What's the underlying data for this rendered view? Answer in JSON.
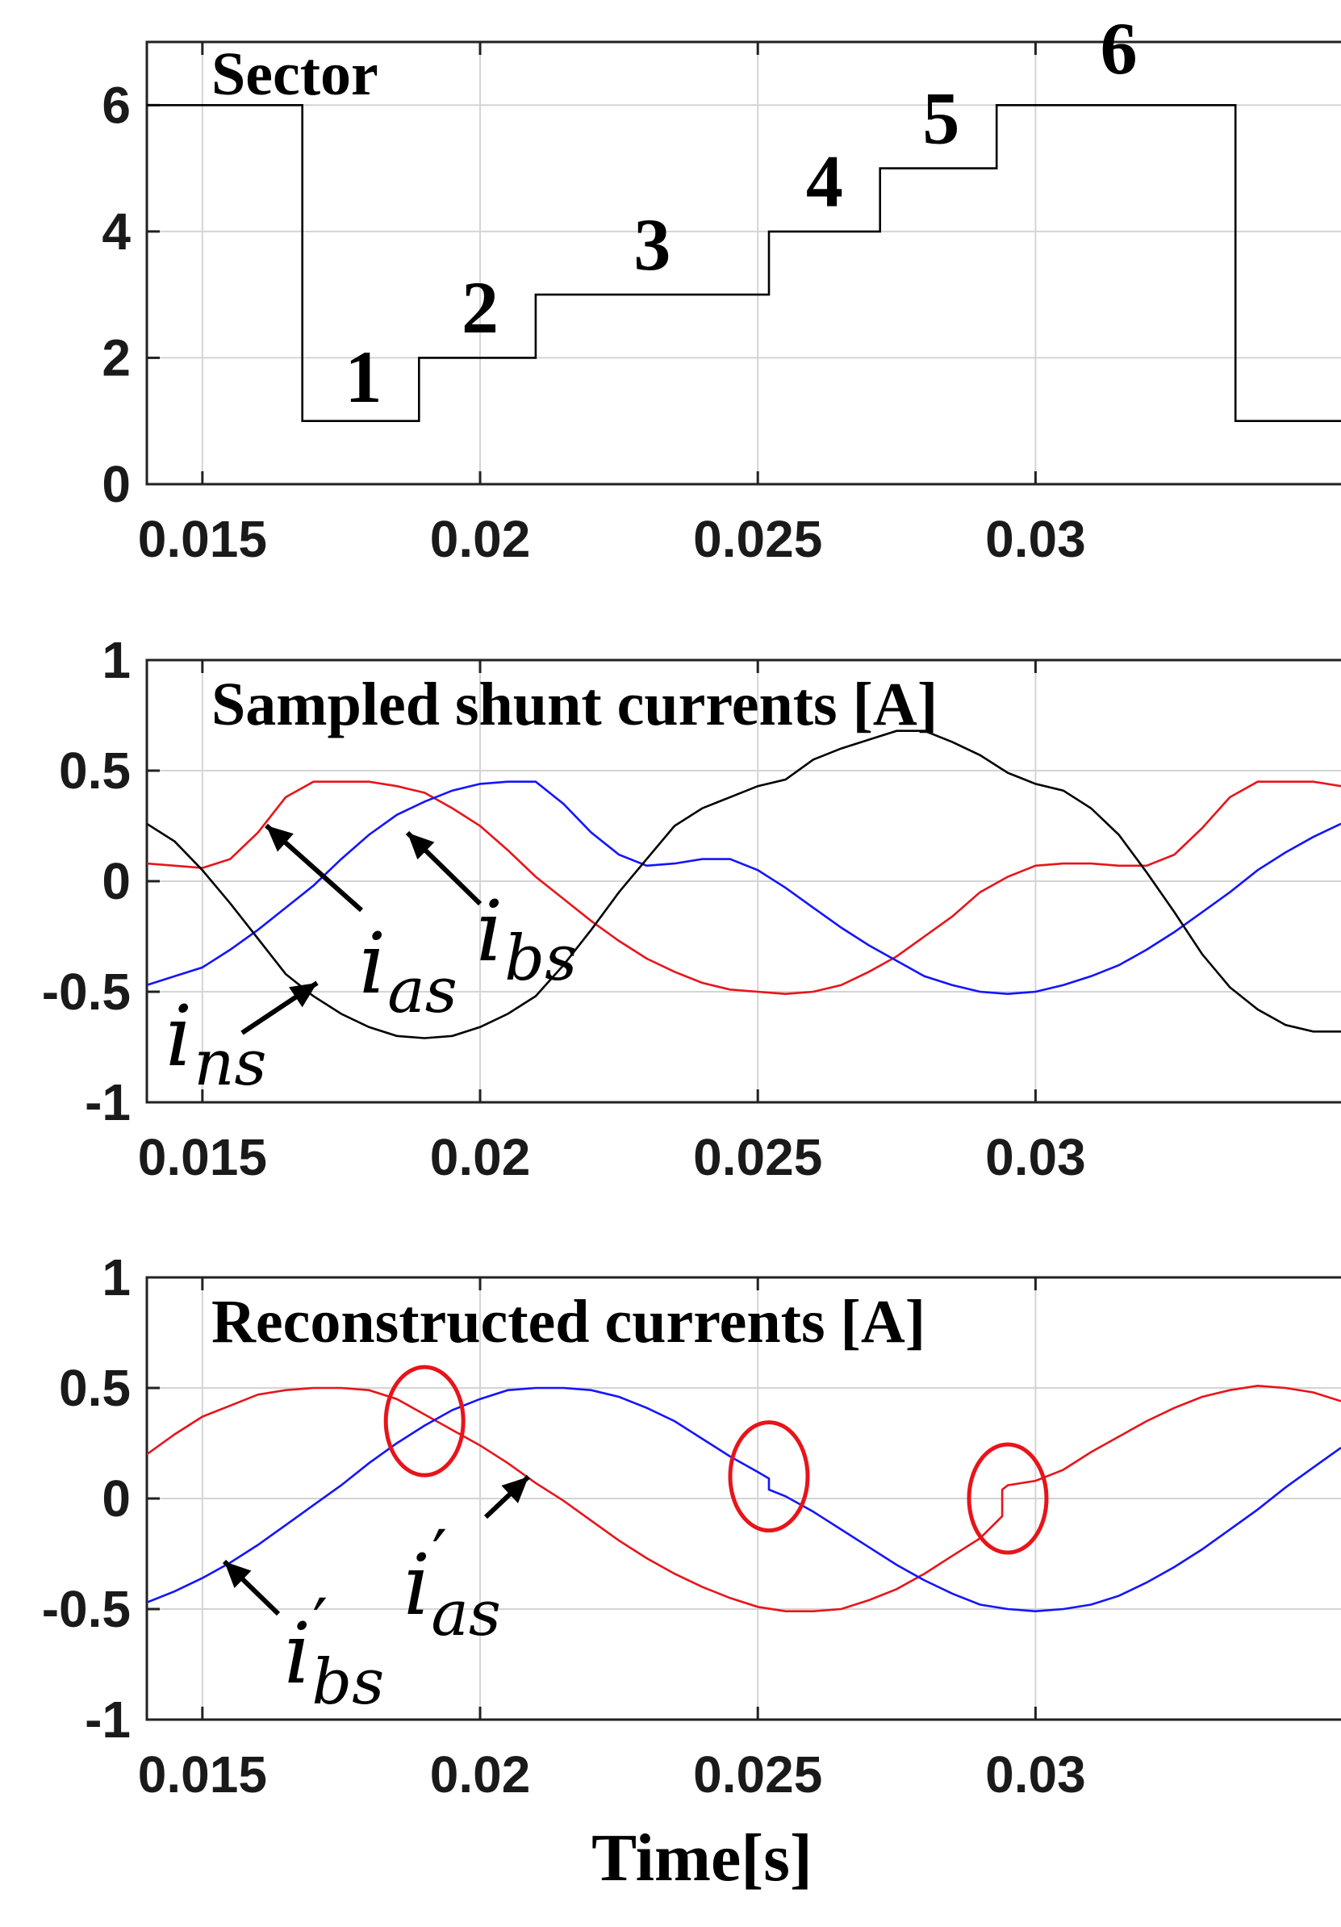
{
  "figure": {
    "xlabel": "Time[s]"
  },
  "chart_data": [
    {
      "type": "line",
      "title": "Sector",
      "xlim": [
        0.014,
        0.0355
      ],
      "ylim": [
        0,
        7
      ],
      "xticks": [
        0.015,
        0.02,
        0.025,
        0.03
      ],
      "xtick_labels": [
        "0.015",
        "0.02",
        "0.025",
        "0.03"
      ],
      "yticks": [
        0,
        2,
        4,
        6
      ],
      "ytick_labels": [
        "0",
        "2",
        "4",
        "6"
      ],
      "grid": true,
      "series": [
        {
          "color": "#000000",
          "step": true,
          "x": [
            0.014,
            0.0168,
            0.0168,
            0.0189,
            0.0189,
            0.021,
            0.021,
            0.0252,
            0.0252,
            0.0272,
            0.0272,
            0.0293,
            0.0293,
            0.0336,
            0.0336,
            0.0355
          ],
          "y": [
            6,
            6,
            1,
            1,
            2,
            2,
            3,
            3,
            4,
            4,
            5,
            5,
            6,
            6,
            1,
            1
          ]
        }
      ],
      "annotations": [
        {
          "text": "1",
          "x": 0.0179,
          "y": 1.3
        },
        {
          "text": "2",
          "x": 0.02,
          "y": 2.4
        },
        {
          "text": "3",
          "x": 0.0231,
          "y": 3.4
        },
        {
          "text": "4",
          "x": 0.0262,
          "y": 4.4
        },
        {
          "text": "5",
          "x": 0.0283,
          "y": 5.4
        },
        {
          "text": "6",
          "x": 0.0315,
          "y": 6.5
        }
      ]
    },
    {
      "type": "line",
      "title": "Sampled shunt currents [A]",
      "xlim": [
        0.014,
        0.0355
      ],
      "ylim": [
        -1,
        1
      ],
      "xticks": [
        0.015,
        0.02,
        0.025,
        0.03
      ],
      "xtick_labels": [
        "0.015",
        "0.02",
        "0.025",
        "0.03"
      ],
      "yticks": [
        -1,
        -0.5,
        0,
        0.5,
        1
      ],
      "ytick_labels": [
        "-1",
        "-0.5",
        "0",
        "0.5",
        "1"
      ],
      "grid": true,
      "series": [
        {
          "name_symbol": "i",
          "name_sub": "as",
          "color": "#e8141a",
          "x": [
            0.014,
            0.0145,
            0.015,
            0.0155,
            0.016,
            0.0165,
            0.017,
            0.0175,
            0.018,
            0.0185,
            0.019,
            0.0195,
            0.02,
            0.0205,
            0.021,
            0.0215,
            0.022,
            0.0225,
            0.023,
            0.0235,
            0.024,
            0.0245,
            0.025,
            0.0255,
            0.026,
            0.0265,
            0.027,
            0.0275,
            0.028,
            0.0285,
            0.029,
            0.0295,
            0.03,
            0.0305,
            0.031,
            0.0315,
            0.032,
            0.0325,
            0.033,
            0.0335,
            0.034,
            0.0345,
            0.035,
            0.0355
          ],
          "y": [
            0.08,
            0.07,
            0.06,
            0.1,
            0.22,
            0.38,
            0.45,
            0.45,
            0.45,
            0.43,
            0.4,
            0.33,
            0.25,
            0.14,
            0.02,
            -0.08,
            -0.18,
            -0.27,
            -0.35,
            -0.41,
            -0.46,
            -0.49,
            -0.5,
            -0.51,
            -0.5,
            -0.47,
            -0.41,
            -0.34,
            -0.25,
            -0.16,
            -0.05,
            0.02,
            0.07,
            0.08,
            0.08,
            0.07,
            0.07,
            0.12,
            0.24,
            0.38,
            0.45,
            0.45,
            0.45,
            0.43
          ]
        },
        {
          "name_symbol": "i",
          "name_sub": "bs",
          "color": "#1414ff",
          "x": [
            0.014,
            0.0145,
            0.015,
            0.0155,
            0.016,
            0.0165,
            0.017,
            0.0175,
            0.018,
            0.0185,
            0.019,
            0.0195,
            0.02,
            0.0205,
            0.021,
            0.0215,
            0.022,
            0.0225,
            0.023,
            0.0235,
            0.024,
            0.0245,
            0.025,
            0.0255,
            0.026,
            0.0265,
            0.027,
            0.0275,
            0.028,
            0.0285,
            0.029,
            0.0295,
            0.03,
            0.0305,
            0.031,
            0.0315,
            0.032,
            0.0325,
            0.033,
            0.0335,
            0.034,
            0.0345,
            0.035,
            0.0355
          ],
          "y": [
            -0.47,
            -0.43,
            -0.39,
            -0.31,
            -0.22,
            -0.12,
            -0.02,
            0.1,
            0.21,
            0.3,
            0.36,
            0.41,
            0.44,
            0.45,
            0.45,
            0.35,
            0.22,
            0.12,
            0.07,
            0.08,
            0.1,
            0.1,
            0.05,
            -0.03,
            -0.12,
            -0.21,
            -0.29,
            -0.36,
            -0.43,
            -0.47,
            -0.5,
            -0.51,
            -0.5,
            -0.47,
            -0.43,
            -0.38,
            -0.31,
            -0.23,
            -0.14,
            -0.05,
            0.05,
            0.13,
            0.2,
            0.26
          ]
        },
        {
          "name_symbol": "i",
          "name_sub": "ns",
          "color": "#000000",
          "x": [
            0.014,
            0.0145,
            0.015,
            0.0155,
            0.016,
            0.0165,
            0.017,
            0.0175,
            0.018,
            0.0185,
            0.019,
            0.0195,
            0.02,
            0.0205,
            0.021,
            0.0215,
            0.022,
            0.0225,
            0.023,
            0.0235,
            0.024,
            0.0245,
            0.025,
            0.0255,
            0.026,
            0.0265,
            0.027,
            0.0275,
            0.028,
            0.0285,
            0.029,
            0.0295,
            0.03,
            0.0305,
            0.031,
            0.0315,
            0.032,
            0.0325,
            0.033,
            0.0335,
            0.034,
            0.0345,
            0.035,
            0.0355
          ],
          "y": [
            0.26,
            0.18,
            0.05,
            -0.1,
            -0.26,
            -0.42,
            -0.52,
            -0.6,
            -0.66,
            -0.7,
            -0.71,
            -0.7,
            -0.66,
            -0.6,
            -0.52,
            -0.38,
            -0.22,
            -0.05,
            0.1,
            0.25,
            0.33,
            0.38,
            0.43,
            0.46,
            0.55,
            0.6,
            0.64,
            0.68,
            0.68,
            0.63,
            0.57,
            0.49,
            0.44,
            0.41,
            0.33,
            0.21,
            0.04,
            -0.14,
            -0.33,
            -0.48,
            -0.58,
            -0.65,
            -0.68,
            -0.68
          ]
        }
      ]
    },
    {
      "type": "line",
      "title": "Reconstructed currents [A]",
      "xlim": [
        0.014,
        0.0355
      ],
      "ylim": [
        -1,
        1
      ],
      "xticks": [
        0.015,
        0.02,
        0.025,
        0.03
      ],
      "xtick_labels": [
        "0.015",
        "0.02",
        "0.025",
        "0.03"
      ],
      "yticks": [
        -1,
        -0.5,
        0,
        0.5,
        1
      ],
      "ytick_labels": [
        "-1",
        "-0.5",
        "0",
        "0.5",
        "1"
      ],
      "grid": true,
      "series": [
        {
          "name_symbol": "i",
          "name_sub": "as",
          "prime": "′",
          "color": "#e8141a",
          "x": [
            0.014,
            0.0145,
            0.015,
            0.0155,
            0.016,
            0.0165,
            0.017,
            0.0175,
            0.018,
            0.0185,
            0.019,
            0.0195,
            0.02,
            0.0205,
            0.021,
            0.0215,
            0.022,
            0.0225,
            0.023,
            0.0235,
            0.024,
            0.0245,
            0.025,
            0.0255,
            0.026,
            0.0265,
            0.027,
            0.0275,
            0.028,
            0.0285,
            0.029,
            0.0294,
            0.0294,
            0.0295,
            0.03,
            0.0305,
            0.031,
            0.0315,
            0.032,
            0.0325,
            0.033,
            0.0335,
            0.034,
            0.0345,
            0.035,
            0.0355
          ],
          "y": [
            0.2,
            0.29,
            0.37,
            0.42,
            0.47,
            0.49,
            0.5,
            0.5,
            0.49,
            0.45,
            0.38,
            0.31,
            0.24,
            0.16,
            0.07,
            -0.01,
            -0.1,
            -0.19,
            -0.27,
            -0.34,
            -0.4,
            -0.45,
            -0.49,
            -0.51,
            -0.51,
            -0.5,
            -0.46,
            -0.41,
            -0.34,
            -0.26,
            -0.18,
            -0.08,
            0.04,
            0.06,
            0.08,
            0.13,
            0.21,
            0.28,
            0.35,
            0.41,
            0.46,
            0.49,
            0.51,
            0.5,
            0.48,
            0.44
          ]
        },
        {
          "name_symbol": "i",
          "name_sub": "bs",
          "prime": "′",
          "color": "#1414ff",
          "x": [
            0.014,
            0.0145,
            0.015,
            0.0155,
            0.016,
            0.0165,
            0.017,
            0.0175,
            0.018,
            0.0185,
            0.019,
            0.0195,
            0.02,
            0.0205,
            0.021,
            0.0215,
            0.022,
            0.0225,
            0.023,
            0.0235,
            0.024,
            0.0245,
            0.025,
            0.0252,
            0.0252,
            0.0255,
            0.026,
            0.0265,
            0.027,
            0.0275,
            0.028,
            0.0285,
            0.029,
            0.0295,
            0.03,
            0.0305,
            0.031,
            0.0315,
            0.032,
            0.0325,
            0.033,
            0.0335,
            0.034,
            0.0345,
            0.035,
            0.0355
          ],
          "y": [
            -0.47,
            -0.42,
            -0.36,
            -0.29,
            -0.21,
            -0.12,
            -0.03,
            0.06,
            0.16,
            0.25,
            0.33,
            0.4,
            0.45,
            0.49,
            0.5,
            0.5,
            0.49,
            0.46,
            0.41,
            0.35,
            0.27,
            0.19,
            0.12,
            0.09,
            0.04,
            0.01,
            -0.06,
            -0.14,
            -0.22,
            -0.3,
            -0.37,
            -0.43,
            -0.48,
            -0.5,
            -0.51,
            -0.5,
            -0.48,
            -0.44,
            -0.38,
            -0.31,
            -0.23,
            -0.14,
            -0.05,
            0.05,
            0.14,
            0.23
          ]
        }
      ],
      "highlights": [
        {
          "x": 0.019,
          "y": 0.35
        },
        {
          "x": 0.0252,
          "y": 0.1
        },
        {
          "x": 0.0295,
          "y": 0.0
        }
      ]
    }
  ]
}
